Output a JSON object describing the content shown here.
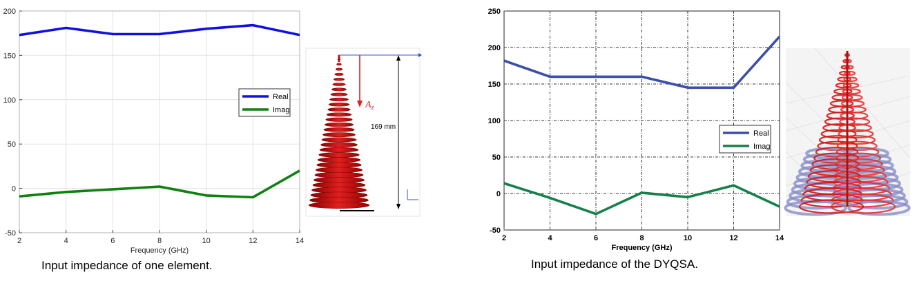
{
  "chart_data": [
    {
      "type": "line",
      "xlabel": "Frequency (GHz)",
      "ylabel": "",
      "xlim": [
        2,
        14
      ],
      "ylim": [
        -50,
        200
      ],
      "xticks": [
        2,
        4,
        6,
        8,
        10,
        12,
        14
      ],
      "yticks": [
        -50,
        0,
        50,
        100,
        150,
        200
      ],
      "grid": true,
      "legend_position": "center-right",
      "series": [
        {
          "name": "Real",
          "color": "#1010e0",
          "x": [
            2,
            4,
            6,
            8,
            10,
            12,
            14
          ],
          "values": [
            173,
            181,
            174,
            174,
            180,
            184,
            173
          ]
        },
        {
          "name": "Imag",
          "color": "#108010",
          "x": [
            2,
            4,
            6,
            8,
            10,
            12,
            14
          ],
          "values": [
            -9,
            -4,
            -1,
            2,
            -8,
            -10,
            20
          ]
        }
      ]
    },
    {
      "type": "line",
      "xlabel": "Frequency (GHz)",
      "ylabel": "",
      "xlim": [
        2,
        14
      ],
      "ylim": [
        -50,
        250
      ],
      "xticks": [
        2,
        4,
        6,
        8,
        10,
        12,
        14
      ],
      "yticks": [
        -50,
        0,
        50,
        100,
        150,
        200,
        250
      ],
      "grid": true,
      "legend_position": "center-right",
      "series": [
        {
          "name": "Real",
          "color": "#3a50a8",
          "x": [
            2,
            4,
            6,
            8,
            10,
            12,
            14
          ],
          "values": [
            182,
            160,
            160,
            160,
            145,
            145,
            215
          ]
        },
        {
          "name": "Imag",
          "color": "#14804a",
          "x": [
            2,
            4,
            6,
            8,
            10,
            12,
            14
          ],
          "values": [
            14,
            -6,
            -28,
            1,
            -5,
            11,
            -18
          ]
        }
      ]
    }
  ],
  "captions": {
    "left": "Input impedance of one element.",
    "right": "Input impedance of the DYQSA."
  },
  "antenna_left": {
    "dimension_label": "169 mm",
    "vector_label": "A",
    "vector_subscript": "z"
  }
}
